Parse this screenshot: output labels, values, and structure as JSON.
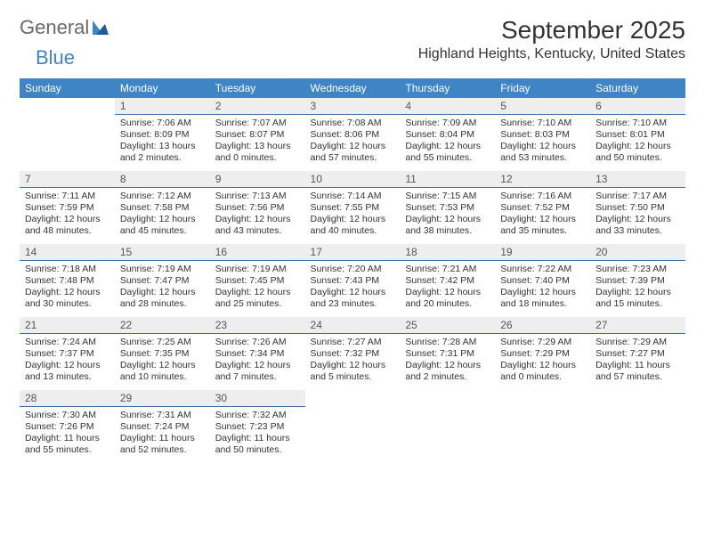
{
  "brand": {
    "part1": "General",
    "part2": "Blue"
  },
  "header": {
    "month_title": "September 2025",
    "location": "Highland Heights, Kentucky, United States"
  },
  "colors": {
    "header_bg": "#3f84c4",
    "header_text": "#ffffff",
    "daybar_bg": "#eeeeee",
    "daybar_border": "#3f6fa0",
    "text": "#333333",
    "logo_gray": "#6a6a6a",
    "logo_blue": "#3f84c4",
    "page_bg": "#ffffff"
  },
  "typography": {
    "title_fontsize": 28,
    "location_fontsize": 16,
    "weekday_fontsize": 12,
    "daynum_fontsize": 12,
    "body_fontsize": 10.5
  },
  "calendar": {
    "type": "table",
    "columns": [
      "Sunday",
      "Monday",
      "Tuesday",
      "Wednesday",
      "Thursday",
      "Friday",
      "Saturday"
    ],
    "weeks": [
      [
        null,
        {
          "n": "1",
          "sunrise": "7:06 AM",
          "sunset": "8:09 PM",
          "daylight": "13 hours and 2 minutes."
        },
        {
          "n": "2",
          "sunrise": "7:07 AM",
          "sunset": "8:07 PM",
          "daylight": "13 hours and 0 minutes."
        },
        {
          "n": "3",
          "sunrise": "7:08 AM",
          "sunset": "8:06 PM",
          "daylight": "12 hours and 57 minutes."
        },
        {
          "n": "4",
          "sunrise": "7:09 AM",
          "sunset": "8:04 PM",
          "daylight": "12 hours and 55 minutes."
        },
        {
          "n": "5",
          "sunrise": "7:10 AM",
          "sunset": "8:03 PM",
          "daylight": "12 hours and 53 minutes."
        },
        {
          "n": "6",
          "sunrise": "7:10 AM",
          "sunset": "8:01 PM",
          "daylight": "12 hours and 50 minutes."
        }
      ],
      [
        {
          "n": "7",
          "sunrise": "7:11 AM",
          "sunset": "7:59 PM",
          "daylight": "12 hours and 48 minutes."
        },
        {
          "n": "8",
          "sunrise": "7:12 AM",
          "sunset": "7:58 PM",
          "daylight": "12 hours and 45 minutes."
        },
        {
          "n": "9",
          "sunrise": "7:13 AM",
          "sunset": "7:56 PM",
          "daylight": "12 hours and 43 minutes."
        },
        {
          "n": "10",
          "sunrise": "7:14 AM",
          "sunset": "7:55 PM",
          "daylight": "12 hours and 40 minutes."
        },
        {
          "n": "11",
          "sunrise": "7:15 AM",
          "sunset": "7:53 PM",
          "daylight": "12 hours and 38 minutes."
        },
        {
          "n": "12",
          "sunrise": "7:16 AM",
          "sunset": "7:52 PM",
          "daylight": "12 hours and 35 minutes."
        },
        {
          "n": "13",
          "sunrise": "7:17 AM",
          "sunset": "7:50 PM",
          "daylight": "12 hours and 33 minutes."
        }
      ],
      [
        {
          "n": "14",
          "sunrise": "7:18 AM",
          "sunset": "7:48 PM",
          "daylight": "12 hours and 30 minutes."
        },
        {
          "n": "15",
          "sunrise": "7:19 AM",
          "sunset": "7:47 PM",
          "daylight": "12 hours and 28 minutes."
        },
        {
          "n": "16",
          "sunrise": "7:19 AM",
          "sunset": "7:45 PM",
          "daylight": "12 hours and 25 minutes."
        },
        {
          "n": "17",
          "sunrise": "7:20 AM",
          "sunset": "7:43 PM",
          "daylight": "12 hours and 23 minutes."
        },
        {
          "n": "18",
          "sunrise": "7:21 AM",
          "sunset": "7:42 PM",
          "daylight": "12 hours and 20 minutes."
        },
        {
          "n": "19",
          "sunrise": "7:22 AM",
          "sunset": "7:40 PM",
          "daylight": "12 hours and 18 minutes."
        },
        {
          "n": "20",
          "sunrise": "7:23 AM",
          "sunset": "7:39 PM",
          "daylight": "12 hours and 15 minutes."
        }
      ],
      [
        {
          "n": "21",
          "sunrise": "7:24 AM",
          "sunset": "7:37 PM",
          "daylight": "12 hours and 13 minutes."
        },
        {
          "n": "22",
          "sunrise": "7:25 AM",
          "sunset": "7:35 PM",
          "daylight": "12 hours and 10 minutes."
        },
        {
          "n": "23",
          "sunrise": "7:26 AM",
          "sunset": "7:34 PM",
          "daylight": "12 hours and 7 minutes."
        },
        {
          "n": "24",
          "sunrise": "7:27 AM",
          "sunset": "7:32 PM",
          "daylight": "12 hours and 5 minutes."
        },
        {
          "n": "25",
          "sunrise": "7:28 AM",
          "sunset": "7:31 PM",
          "daylight": "12 hours and 2 minutes."
        },
        {
          "n": "26",
          "sunrise": "7:29 AM",
          "sunset": "7:29 PM",
          "daylight": "12 hours and 0 minutes."
        },
        {
          "n": "27",
          "sunrise": "7:29 AM",
          "sunset": "7:27 PM",
          "daylight": "11 hours and 57 minutes."
        }
      ],
      [
        {
          "n": "28",
          "sunrise": "7:30 AM",
          "sunset": "7:26 PM",
          "daylight": "11 hours and 55 minutes."
        },
        {
          "n": "29",
          "sunrise": "7:31 AM",
          "sunset": "7:24 PM",
          "daylight": "11 hours and 52 minutes."
        },
        {
          "n": "30",
          "sunrise": "7:32 AM",
          "sunset": "7:23 PM",
          "daylight": "11 hours and 50 minutes."
        },
        null,
        null,
        null,
        null
      ]
    ],
    "labels": {
      "sunrise": "Sunrise:",
      "sunset": "Sunset:",
      "daylight": "Daylight:"
    }
  }
}
